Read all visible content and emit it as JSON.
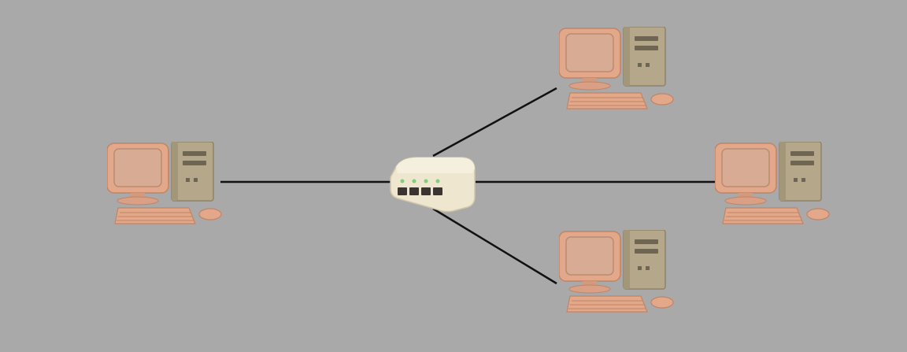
{
  "diagram": {
    "type": "star-network",
    "center": {
      "kind": "network-switch",
      "ports": 4,
      "port_lights": 4
    },
    "nodes": [
      {
        "id": "pc-left",
        "kind": "desktop-computer"
      },
      {
        "id": "pc-top-right",
        "kind": "desktop-computer"
      },
      {
        "id": "pc-right",
        "kind": "desktop-computer"
      },
      {
        "id": "pc-bottom-right",
        "kind": "desktop-computer"
      }
    ],
    "links": [
      {
        "from": "switch",
        "to": "pc-left"
      },
      {
        "from": "switch",
        "to": "pc-top-right"
      },
      {
        "from": "switch",
        "to": "pc-right"
      },
      {
        "from": "switch",
        "to": "pc-bottom-right"
      }
    ],
    "colors": {
      "background": "#a9a9a9",
      "link": "#111111",
      "monitor": "#e2a889",
      "screen": "#d8ab95",
      "tower": "#b5a88a",
      "switch": "#eee6cf",
      "port": "#3a3530",
      "led": "#7fcf7a"
    }
  }
}
